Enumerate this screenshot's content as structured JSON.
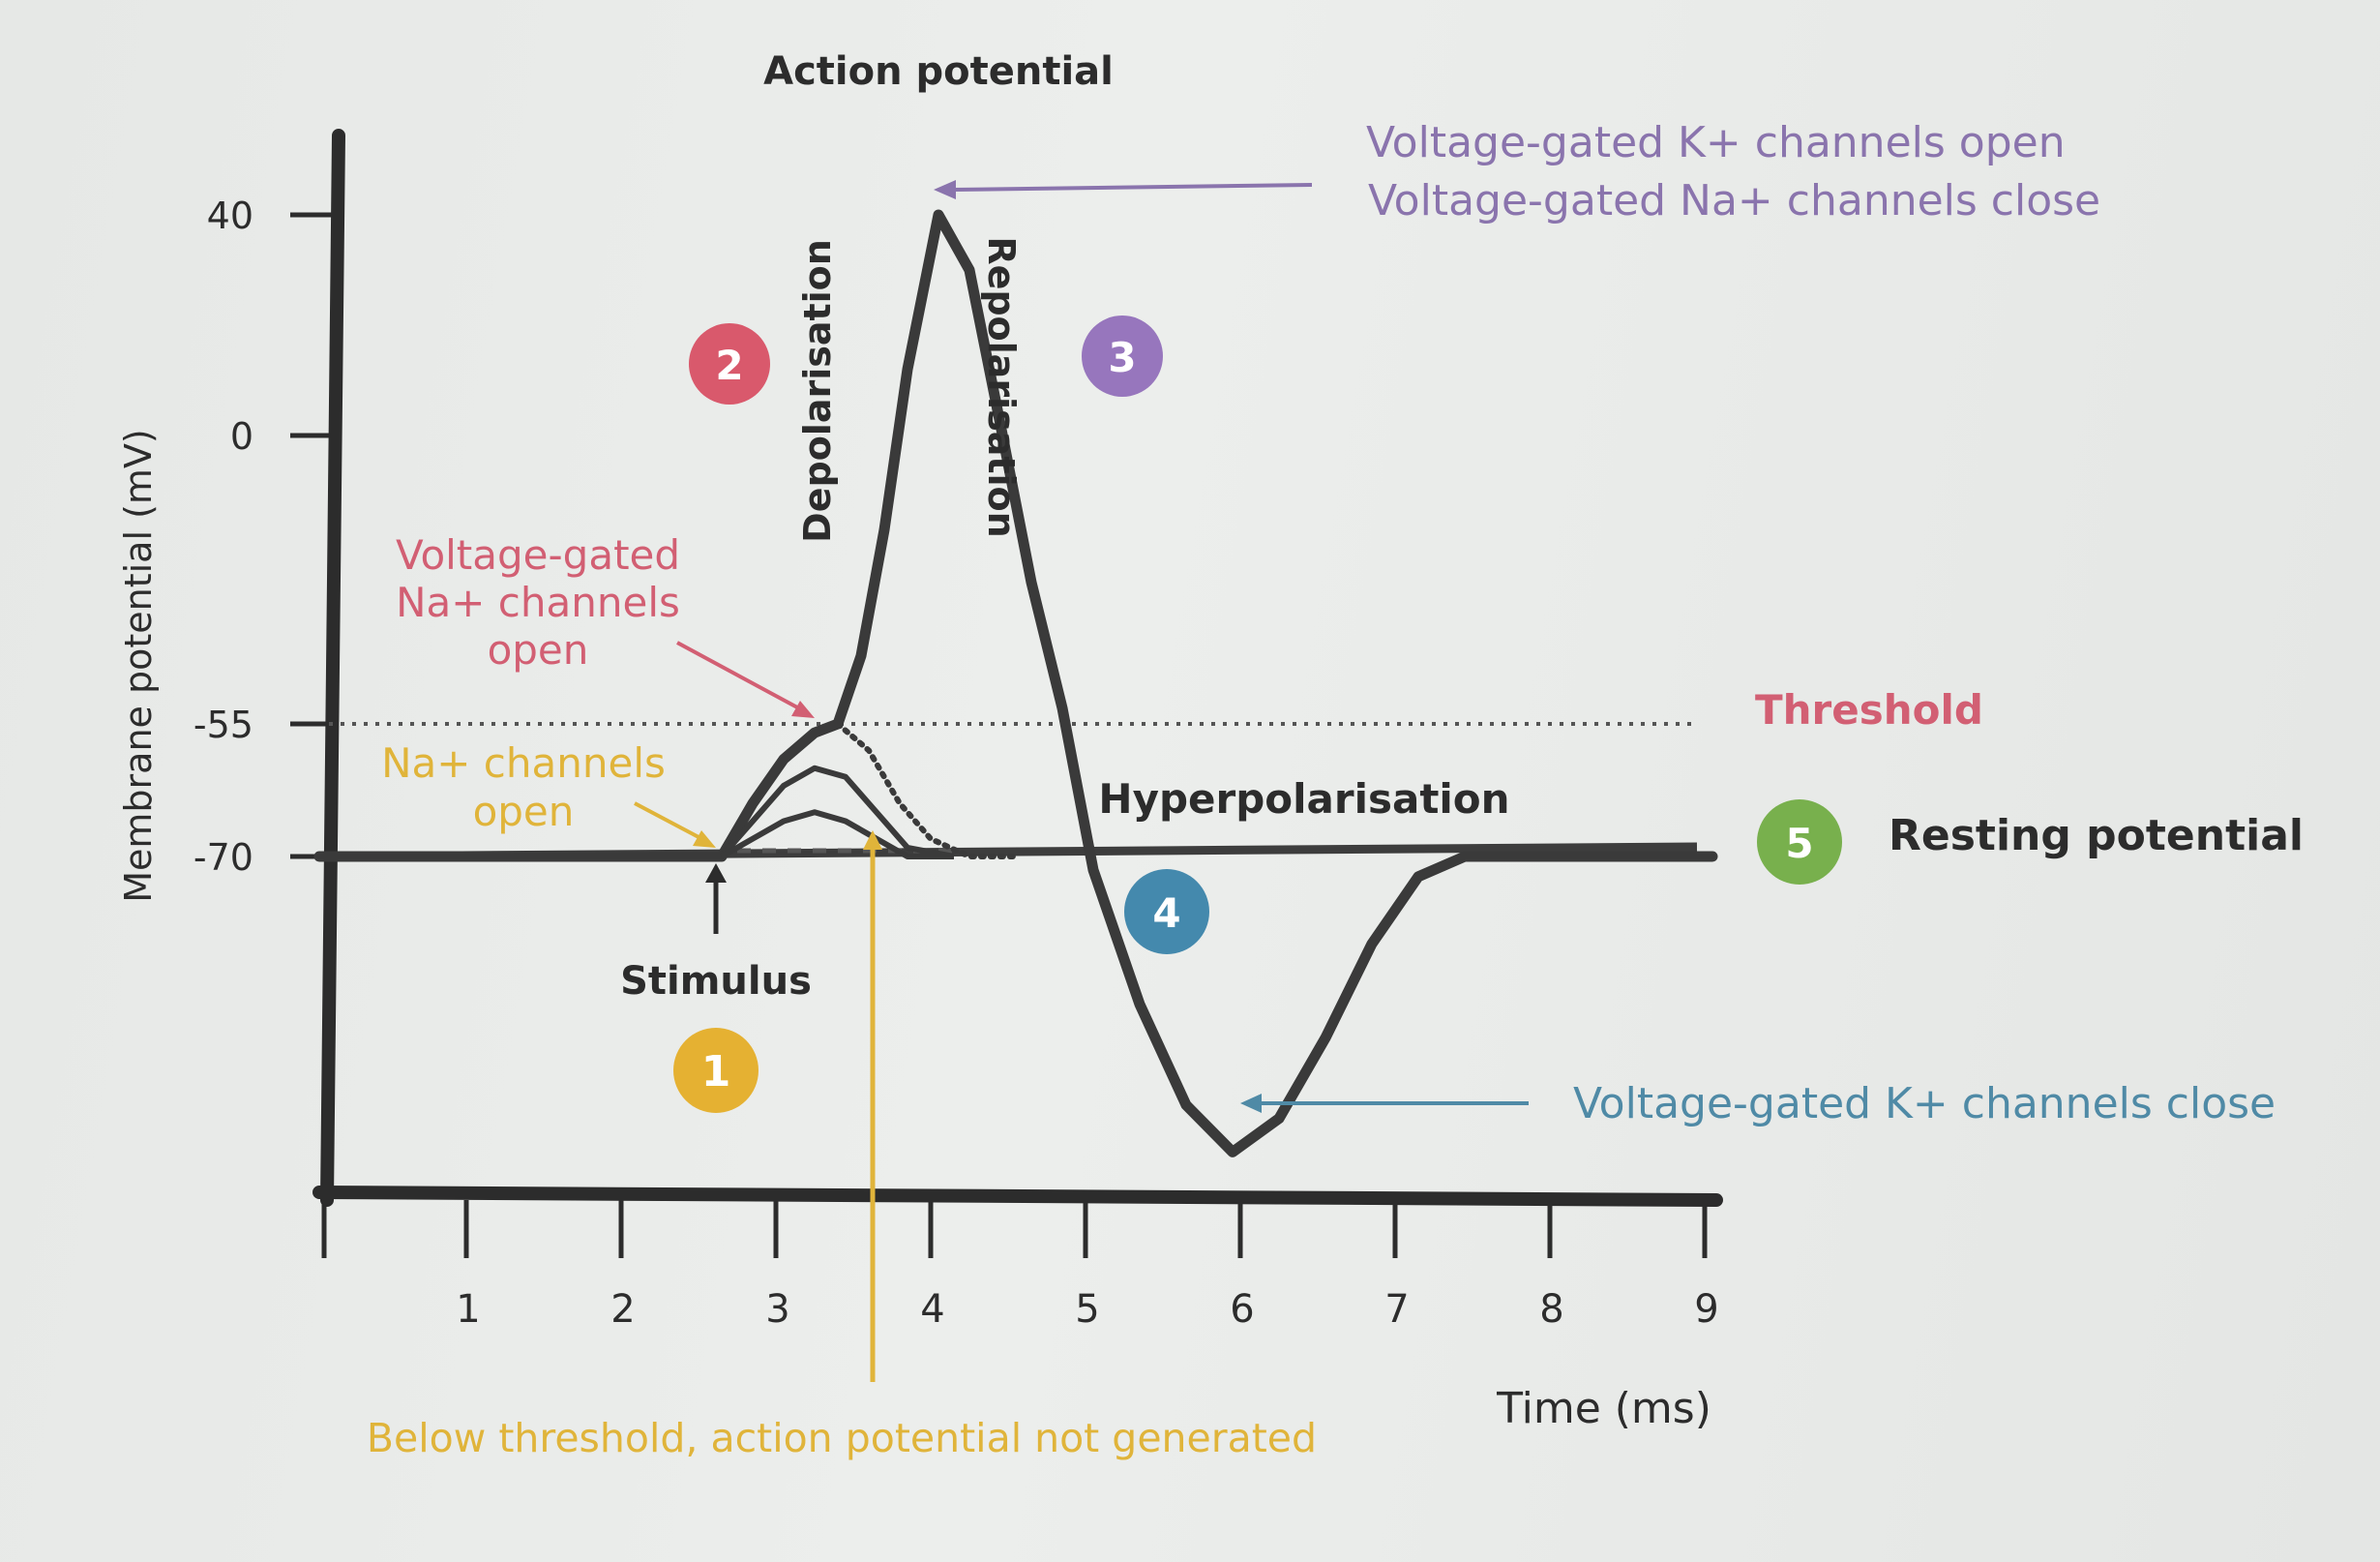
{
  "colors": {
    "ink": "#2f2f2f",
    "purple": "#8a74ad",
    "pink": "#d25f73",
    "yellow": "#e0b43a",
    "blue": "#4f8aa6",
    "green": "#79ad4f",
    "stage1": "#e5b132",
    "stage2": "#d9596c",
    "stage3": "#9776bd",
    "stage4": "#4489ad",
    "stage5": "#78b04d"
  },
  "chart_data": {
    "type": "line",
    "title": "Action potential",
    "xlabel": "Time (ms)",
    "ylabel": "Membrane potential (mV)",
    "xlim": [
      0,
      9
    ],
    "ylim": [
      -120,
      55
    ],
    "x_ticks": [
      1,
      2,
      3,
      4,
      5,
      6,
      7,
      8,
      9
    ],
    "x_tick_labels": [
      "1",
      "2",
      "3",
      "4",
      "5",
      "6",
      "7",
      "8",
      "9"
    ],
    "y_ticks": [
      40,
      0,
      -55,
      -70
    ],
    "y_tick_labels": [
      "40",
      "0",
      "-55",
      "-70"
    ],
    "threshold": {
      "value": -55,
      "label": "Threshold"
    },
    "resting_level": -70,
    "series": [
      {
        "x": [
          0,
          1,
          2,
          2.6,
          2.8,
          3.0,
          3.2,
          3.35,
          3.5,
          3.65,
          3.8,
          4.0,
          4.2,
          4.4,
          4.6,
          4.8,
          5.0,
          5.3,
          5.6,
          5.9,
          6.2,
          6.5,
          6.8,
          7.1,
          7.4,
          7.8,
          8.4,
          9.0
        ],
        "y": [
          -70,
          -70,
          -70,
          -70,
          -64,
          -59,
          -56,
          -55,
          -42,
          -18,
          12,
          40,
          30,
          2,
          -28,
          -52,
          -72,
          -92,
          -107,
          -114,
          -109,
          -97,
          -83,
          -73,
          -70,
          -70,
          -70,
          -70
        ]
      },
      {
        "x": [
          2.6,
          2.8,
          3.0,
          3.2,
          3.4,
          3.6,
          3.8,
          4.1
        ],
        "y": [
          -70,
          -66,
          -62,
          -60,
          -61,
          -65,
          -69,
          -70
        ]
      },
      {
        "x": [
          2.6,
          2.8,
          3.0,
          3.2,
          3.4,
          3.6,
          3.8,
          4.1
        ],
        "y": [
          -70,
          -68,
          -66,
          -65,
          -66,
          -68,
          -70,
          -70
        ]
      }
    ],
    "subthreshold_decay": {
      "x": [
        3.35,
        3.55,
        3.75,
        3.95,
        4.2,
        4.5
      ],
      "y": [
        -55,
        -58,
        -64,
        -68,
        -70,
        -70
      ]
    },
    "stimulus": {
      "x": 2.6,
      "label": "Stimulus"
    },
    "below_threshold_marker": {
      "x": 3.65,
      "label": "Below threshold, action potential not generated"
    },
    "phase_labels": {
      "depolarisation": "Depolarisation",
      "repolarisation": "Repolarisation",
      "hyperpolarisation": "Hyperpolarisation",
      "resting": "Resting potential"
    },
    "annotations": {
      "peak_line1": "Voltage-gated K+ channels open",
      "peak_line2": "Voltage-gated Na+ channels close",
      "na_gated_line1": "Voltage-gated",
      "na_gated_line2": "Na+ channels",
      "na_gated_line3": "open",
      "na_open_line1": "Na+ channels",
      "na_open_line2": "open",
      "k_close": "Voltage-gated K+ channels close"
    },
    "stages": [
      "1",
      "2",
      "3",
      "4",
      "5"
    ]
  }
}
